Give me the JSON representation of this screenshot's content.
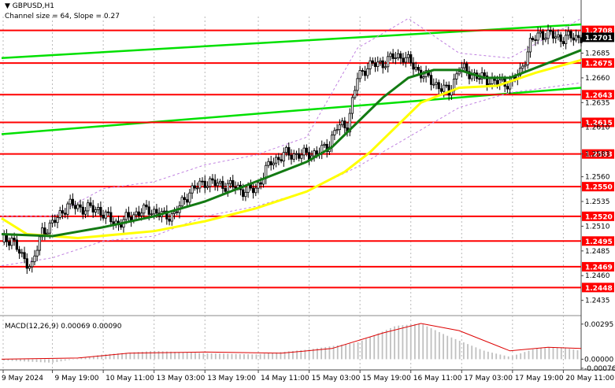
{
  "header": {
    "symbol": "GBPUSD,H1",
    "channel": "Channel size = 64, Slope = 0.27",
    "macd": "MACD(12,26,9) 0.00069 0.00090"
  },
  "colors": {
    "candle": "#000000",
    "level": "#ff0000",
    "channel": "#00e000",
    "ma_fast": "#137a13",
    "ma_slow": "#ffff00",
    "bollinger": "#c080e0",
    "current_price_bg": "#000000",
    "macd_hist": "#c0c0c0",
    "macd_signal": "#dd0000"
  },
  "chart_data": {
    "type": "candlestick",
    "symbol": "GBPUSD",
    "timeframe": "H1",
    "ylim": [
      1.2422,
      1.2722
    ],
    "y_ticks": [
      "1.2685",
      "1.2660",
      "1.2635",
      "1.2610",
      "1.2583",
      "1.2560",
      "1.2535",
      "1.2510",
      "1.2485",
      "1.2460",
      "1.2435"
    ],
    "x_ticks": [
      "9 May 2024",
      "9 May 19:00",
      "10 May 11:00",
      "13 May 03:00",
      "13 May 19:00",
      "14 May 11:00",
      "15 May 03:00",
      "15 May 19:00",
      "16 May 11:00",
      "17 May 03:00",
      "17 May 19:00",
      "20 May 11:00"
    ],
    "levels": [
      "1.2708",
      "1.2675",
      "1.2643",
      "1.2615",
      "1.2583",
      "1.2550",
      "1.2520",
      "1.2495",
      "1.2469",
      "1.2448"
    ],
    "current_price": "1.2701",
    "close_path": [
      [
        0,
        1.2494
      ],
      [
        4,
        1.2498
      ],
      [
        8,
        1.2478
      ],
      [
        12,
        1.247
      ],
      [
        16,
        1.2505
      ],
      [
        20,
        1.2512
      ],
      [
        26,
        1.2532
      ],
      [
        32,
        1.2528
      ],
      [
        38,
        1.2527
      ],
      [
        42,
        1.2518
      ],
      [
        46,
        1.2512
      ],
      [
        52,
        1.2522
      ],
      [
        58,
        1.2527
      ],
      [
        64,
        1.252
      ],
      [
        68,
        1.2522
      ],
      [
        74,
        1.2545
      ],
      [
        80,
        1.2555
      ],
      [
        86,
        1.2552
      ],
      [
        92,
        1.255
      ],
      [
        96,
        1.2545
      ],
      [
        100,
        1.2548
      ],
      [
        106,
        1.2575
      ],
      [
        112,
        1.2583
      ],
      [
        118,
        1.2582
      ],
      [
        124,
        1.2584
      ],
      [
        128,
        1.259
      ],
      [
        132,
        1.261
      ],
      [
        136,
        1.2612
      ],
      [
        140,
        1.266
      ],
      [
        144,
        1.2672
      ],
      [
        150,
        1.2675
      ],
      [
        154,
        1.2681
      ],
      [
        158,
        1.2682
      ],
      [
        164,
        1.2667
      ],
      [
        170,
        1.2655
      ],
      [
        176,
        1.2645
      ],
      [
        180,
        1.267
      ],
      [
        184,
        1.2665
      ],
      [
        188,
        1.266
      ],
      [
        192,
        1.2658
      ],
      [
        196,
        1.2655
      ],
      [
        200,
        1.2655
      ],
      [
        204,
        1.2665
      ],
      [
        208,
        1.2695
      ],
      [
        212,
        1.2705
      ],
      [
        216,
        1.2703
      ],
      [
        220,
        1.27
      ],
      [
        224,
        1.2701
      ],
      [
        228,
        1.2701
      ]
    ],
    "channel_lines": [
      {
        "from": [
          0,
          1.268
        ],
        "to": [
          228,
          1.2714
        ]
      },
      {
        "from": [
          0,
          1.2603
        ],
        "to": [
          228,
          1.265
        ]
      }
    ],
    "ma_fast": [
      [
        0,
        1.2502
      ],
      [
        20,
        1.25
      ],
      [
        40,
        1.2509
      ],
      [
        60,
        1.252
      ],
      [
        80,
        1.2535
      ],
      [
        100,
        1.2555
      ],
      [
        120,
        1.2575
      ],
      [
        130,
        1.259
      ],
      [
        140,
        1.2615
      ],
      [
        150,
        1.264
      ],
      [
        160,
        1.266
      ],
      [
        170,
        1.2668
      ],
      [
        180,
        1.2668
      ],
      [
        190,
        1.266
      ],
      [
        200,
        1.266
      ],
      [
        210,
        1.267
      ],
      [
        220,
        1.268
      ],
      [
        228,
        1.2688
      ]
    ],
    "ma_slow": [
      [
        0,
        1.2518
      ],
      [
        10,
        1.2502
      ],
      [
        30,
        1.2498
      ],
      [
        60,
        1.2505
      ],
      [
        80,
        1.2515
      ],
      [
        100,
        1.2528
      ],
      [
        120,
        1.2545
      ],
      [
        135,
        1.2565
      ],
      [
        145,
        1.2585
      ],
      [
        155,
        1.261
      ],
      [
        165,
        1.2635
      ],
      [
        180,
        1.265
      ],
      [
        195,
        1.2652
      ],
      [
        210,
        1.2665
      ],
      [
        228,
        1.2678
      ]
    ],
    "bollinger_upper": [
      [
        0,
        1.252
      ],
      [
        20,
        1.252
      ],
      [
        40,
        1.2548
      ],
      [
        60,
        1.2555
      ],
      [
        80,
        1.2572
      ],
      [
        100,
        1.2582
      ],
      [
        120,
        1.26
      ],
      [
        140,
        1.269
      ],
      [
        160,
        1.272
      ],
      [
        180,
        1.2685
      ],
      [
        200,
        1.268
      ],
      [
        228,
        1.272
      ]
    ],
    "bollinger_lower": [
      [
        0,
        1.247
      ],
      [
        20,
        1.2478
      ],
      [
        40,
        1.2495
      ],
      [
        60,
        1.25
      ],
      [
        80,
        1.252
      ],
      [
        100,
        1.253
      ],
      [
        120,
        1.2545
      ],
      [
        140,
        1.257
      ],
      [
        160,
        1.26
      ],
      [
        180,
        1.263
      ],
      [
        200,
        1.2645
      ],
      [
        228,
        1.2655
      ]
    ],
    "macd": {
      "ylim": [
        -0.0009,
        0.0034
      ],
      "y_ticks": [
        "0.00295",
        "0.00000",
        "-0.00076"
      ],
      "histogram": [
        [
          0,
          -0.0001
        ],
        [
          20,
          -0.0003
        ],
        [
          40,
          0.0004
        ],
        [
          60,
          0.0007
        ],
        [
          80,
          0.0005
        ],
        [
          100,
          0.0004
        ],
        [
          120,
          0.0008
        ],
        [
          140,
          0.0014
        ],
        [
          155,
          0.0028
        ],
        [
          165,
          0.003
        ],
        [
          175,
          0.002
        ],
        [
          190,
          0.0007
        ],
        [
          200,
          0.0002
        ],
        [
          210,
          0.0009
        ],
        [
          220,
          0.001
        ],
        [
          228,
          0.0007
        ]
      ],
      "signal": [
        [
          0,
          0.0
        ],
        [
          30,
          0.0001
        ],
        [
          50,
          0.0005
        ],
        [
          80,
          0.0006
        ],
        [
          110,
          0.0005
        ],
        [
          130,
          0.0009
        ],
        [
          150,
          0.0022
        ],
        [
          165,
          0.003
        ],
        [
          180,
          0.0024
        ],
        [
          200,
          0.0007
        ],
        [
          215,
          0.001
        ],
        [
          228,
          0.0009
        ]
      ]
    }
  }
}
